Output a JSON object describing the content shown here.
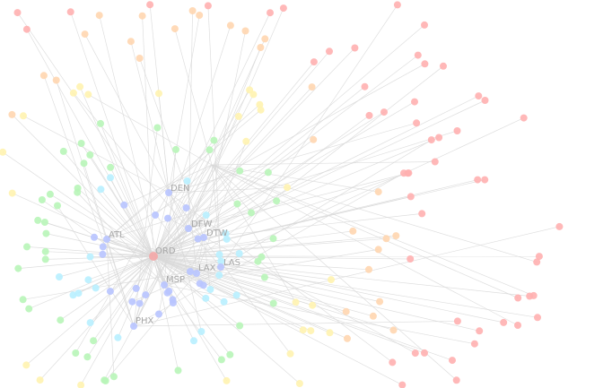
{
  "graph": {
    "center": {
      "code": "ORD"
    },
    "hubs": [
      {
        "code": "ORD"
      },
      {
        "code": "DEN"
      },
      {
        "code": "DFW"
      },
      {
        "code": "DTW"
      },
      {
        "code": "ATL"
      },
      {
        "code": "LAX"
      },
      {
        "code": "LAS"
      },
      {
        "code": "MSP"
      },
      {
        "code": "PHX"
      }
    ],
    "colors": {
      "edge": "#d9d9d9",
      "label": "#a8a8a8",
      "center": "#f4a7a7",
      "palette": [
        "#b8c4ff",
        "#b8f0ff",
        "#b8f5b8",
        "#fff3b0",
        "#ffd6b0",
        "#ffb0b0"
      ]
    }
  }
}
